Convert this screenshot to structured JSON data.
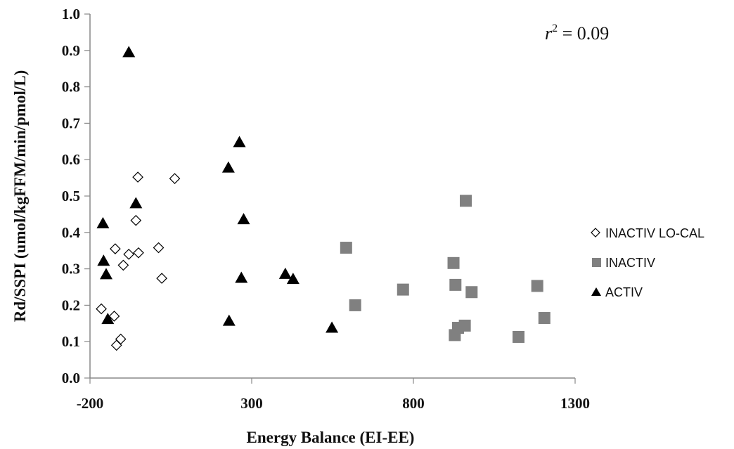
{
  "chart_data": {
    "type": "scatter",
    "title": "",
    "xlabel": "Energy Balance (EI-EE)",
    "ylabel": "Rd/SSPI (umol/kgFFM/min/pmol/L)",
    "xlim": [
      -200,
      1300
    ],
    "ylim": [
      0,
      1.0
    ],
    "x_ticks": [
      -200,
      300,
      800,
      1300
    ],
    "x_tick_labels": [
      "-200",
      "300",
      "800",
      "1300"
    ],
    "y_ticks": [
      0,
      0.1,
      0.2,
      0.3,
      0.4,
      0.5,
      0.6,
      0.7,
      0.8,
      0.9,
      1.0
    ],
    "y_tick_labels": [
      "0.0",
      "0.1",
      "0.2",
      "0.3",
      "0.4",
      "0.5",
      "0.6",
      "0.7",
      "0.8",
      "0.9",
      "1.0"
    ],
    "grid": false,
    "legend_position": "right",
    "annotation": {
      "base": "r",
      "exponent": "2",
      "rest": " = 0.09"
    },
    "series": [
      {
        "name": "INACTIV LO-CAL",
        "marker": "diamond-open",
        "color": "#000000",
        "points": [
          [
            -165,
            0.19
          ],
          [
            -122,
            0.355
          ],
          [
            -125,
            0.17
          ],
          [
            -118,
            0.09
          ],
          [
            -105,
            0.107
          ],
          [
            -97,
            0.31
          ],
          [
            -80,
            0.34
          ],
          [
            -58,
            0.433
          ],
          [
            -52,
            0.552
          ],
          [
            -50,
            0.344
          ],
          [
            12,
            0.358
          ],
          [
            22,
            0.274
          ],
          [
            62,
            0.548
          ]
        ]
      },
      {
        "name": "INACTIV",
        "marker": "square",
        "color": "#808080",
        "points": [
          [
            592,
            0.358
          ],
          [
            620,
            0.2
          ],
          [
            768,
            0.243
          ],
          [
            924,
            0.316
          ],
          [
            928,
            0.118
          ],
          [
            930,
            0.256
          ],
          [
            938,
            0.138
          ],
          [
            959,
            0.144
          ],
          [
            962,
            0.487
          ],
          [
            980,
            0.236
          ],
          [
            1125,
            0.113
          ],
          [
            1183,
            0.253
          ],
          [
            1205,
            0.165
          ]
        ]
      },
      {
        "name": "ACTIV",
        "marker": "triangle",
        "color": "#000000",
        "points": [
          [
            -160,
            0.425
          ],
          [
            -158,
            0.322
          ],
          [
            -150,
            0.285
          ],
          [
            -145,
            0.162
          ],
          [
            -80,
            0.895
          ],
          [
            -58,
            0.48
          ],
          [
            228,
            0.578
          ],
          [
            230,
            0.157
          ],
          [
            262,
            0.648
          ],
          [
            268,
            0.275
          ],
          [
            275,
            0.436
          ],
          [
            404,
            0.286
          ],
          [
            428,
            0.272
          ],
          [
            548,
            0.138
          ]
        ]
      }
    ]
  }
}
